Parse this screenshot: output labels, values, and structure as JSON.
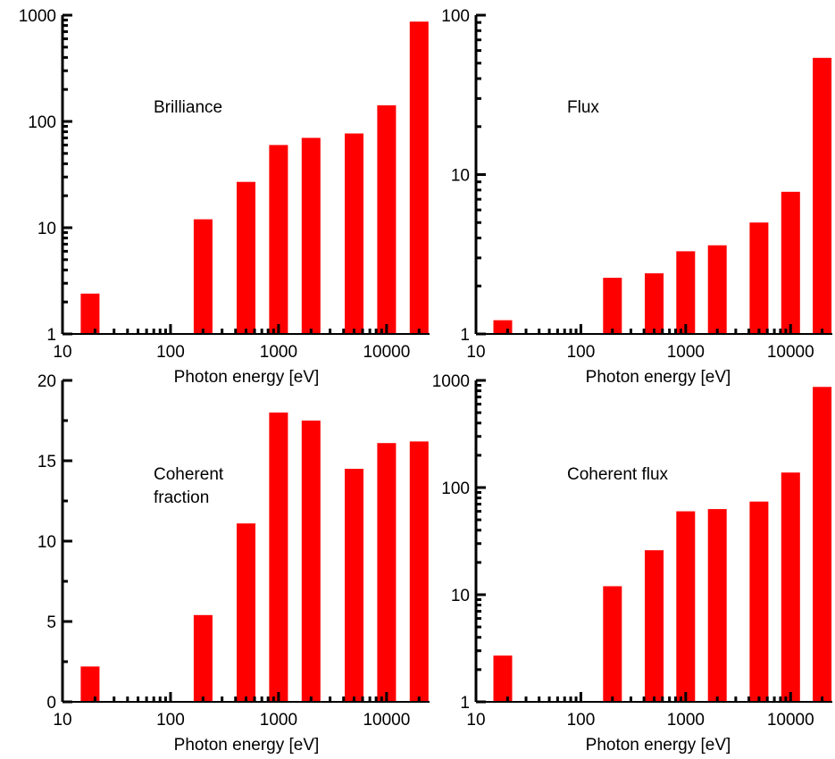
{
  "xlabel": "Photon energy [eV]",
  "bar_color": "#ff0000",
  "chart_data": [
    {
      "type": "bar",
      "annotation": [
        "Brilliance"
      ],
      "xlabel": "Photon energy [eV]",
      "ylabel": "",
      "xscale": "log",
      "yscale": "log",
      "xlim": [
        10,
        25000
      ],
      "ylim": [
        1,
        1000
      ],
      "xticks": [
        "10",
        "100",
        "1000",
        "10000"
      ],
      "yticks": [
        "1",
        "10",
        "100",
        "1000"
      ],
      "x": [
        18,
        200,
        500,
        1000,
        2000,
        5000,
        10000,
        20000
      ],
      "values": [
        2.4,
        12,
        27,
        60,
        70,
        77,
        142,
        870
      ]
    },
    {
      "type": "bar",
      "annotation": [
        "Flux"
      ],
      "xlabel": "Photon energy [eV]",
      "ylabel": "",
      "xscale": "log",
      "yscale": "log",
      "xlim": [
        10,
        25000
      ],
      "ylim": [
        1,
        100
      ],
      "xticks": [
        "10",
        "100",
        "1000",
        "10000"
      ],
      "yticks": [
        "1",
        "10",
        "100"
      ],
      "x": [
        18,
        200,
        500,
        1000,
        2000,
        5000,
        10000,
        20000
      ],
      "values": [
        1.22,
        2.25,
        2.4,
        3.3,
        3.6,
        5.0,
        7.8,
        54
      ]
    },
    {
      "type": "bar",
      "annotation": [
        "Coherent",
        "fraction"
      ],
      "xlabel": "Photon energy [eV]",
      "ylabel": "",
      "xscale": "log",
      "yscale": "linear",
      "xlim": [
        10,
        25000
      ],
      "ylim": [
        0,
        20
      ],
      "xticks": [
        "10",
        "100",
        "1000",
        "10000"
      ],
      "yticks": [
        "0",
        "5",
        "10",
        "15",
        "20"
      ],
      "x": [
        18,
        200,
        500,
        1000,
        2000,
        5000,
        10000,
        20000
      ],
      "values": [
        2.2,
        5.4,
        11.1,
        18.0,
        17.5,
        14.5,
        16.1,
        16.2
      ]
    },
    {
      "type": "bar",
      "annotation": [
        "Coherent flux"
      ],
      "xlabel": "Photon energy [eV]",
      "ylabel": "",
      "xscale": "log",
      "yscale": "log",
      "xlim": [
        10,
        25000
      ],
      "ylim": [
        1,
        1000
      ],
      "xticks": [
        "10",
        "100",
        "1000",
        "10000"
      ],
      "yticks": [
        "1",
        "10",
        "100",
        "1000"
      ],
      "x": [
        18,
        200,
        500,
        1000,
        2000,
        5000,
        10000,
        20000
      ],
      "values": [
        2.7,
        12,
        26,
        60,
        63,
        74,
        138,
        870
      ]
    }
  ]
}
